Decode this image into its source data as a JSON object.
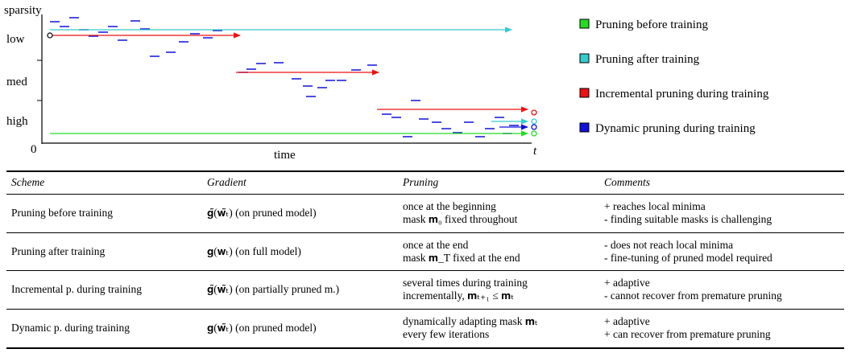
{
  "figure": {
    "y_label": "sparsity",
    "levels": [
      "low",
      "med",
      "high"
    ],
    "origin": "0",
    "x_label": "time",
    "x_end": "t"
  },
  "legend": [
    {
      "label": "Pruning before training",
      "color": "#22dd22"
    },
    {
      "label": "Pruning after training",
      "color": "#33cccc"
    },
    {
      "label": "Incremental pruning during training",
      "color": "#ee1111"
    },
    {
      "label": "Dynamic pruning during training",
      "color": "#1111dd"
    }
  ],
  "table": {
    "header": [
      "Scheme",
      "Gradient",
      "Pruning",
      "Comments"
    ],
    "rows": [
      [
        [
          "Pruning before training"
        ],
        [
          "𝐠̃(𝐰̃ₜ) (on pruned model)"
        ],
        [
          "once at the beginning",
          "mask 𝐦₀ fixed throughout"
        ],
        [
          "+ reaches local minima",
          "- finding suitable masks is challenging"
        ]
      ],
      [
        [
          "Pruning after training"
        ],
        [
          "𝐠(𝐰ₜ) (on full model)"
        ],
        [
          "once at the end",
          "mask 𝐦_T fixed at the end"
        ],
        [
          "- does not reach local minima",
          "- fine-tuning of pruned model required"
        ]
      ],
      [
        [
          "Incremental p. during training"
        ],
        [
          "𝐠̃(𝐰̃ₜ) (on partially pruned m.)"
        ],
        [
          "several times during training",
          "incrementally, 𝐦ₜ₊₁ ≤ 𝐦ₜ"
        ],
        [
          "+ adaptive",
          "- cannot recover from premature pruning"
        ]
      ],
      [
        [
          "Dynamic p. during training"
        ],
        [
          "𝐠(𝐰̃ₜ) (on pruned model)"
        ],
        [
          "dynamically adapting mask 𝐦ₜ",
          "every few iterations"
        ],
        [
          "+ adaptive",
          "+ can recover from premature pruning"
        ]
      ]
    ]
  }
}
